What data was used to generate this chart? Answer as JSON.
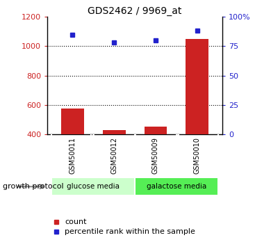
{
  "title": "GDS2462 / 9969_at",
  "samples": [
    "GSM50011",
    "GSM50012",
    "GSM50009",
    "GSM50010"
  ],
  "count_values": [
    575,
    430,
    455,
    1050
  ],
  "percentile_values": [
    85,
    78,
    80,
    88
  ],
  "bar_bottom": 400,
  "ylim_left": [
    400,
    1200
  ],
  "ylim_right": [
    0,
    100
  ],
  "yticks_left": [
    400,
    600,
    800,
    1000,
    1200
  ],
  "yticks_right": [
    0,
    25,
    50,
    75,
    100
  ],
  "yticklabels_right": [
    "0",
    "25",
    "50",
    "75",
    "100%"
  ],
  "bar_color": "#cc2222",
  "dot_color": "#2222cc",
  "group_labels": [
    "glucose media",
    "galactose media"
  ],
  "group_ranges": [
    [
      0,
      2
    ],
    [
      2,
      4
    ]
  ],
  "group_colors": [
    "#ccffcc",
    "#55ee55"
  ],
  "sample_label_bg": "#c8c8c8",
  "growth_protocol_label": "growth protocol",
  "legend_count_label": "count",
  "legend_percentile_label": "percentile rank within the sample",
  "left_tick_color": "#cc2222",
  "right_tick_color": "#2222cc",
  "background_color": "#ffffff"
}
